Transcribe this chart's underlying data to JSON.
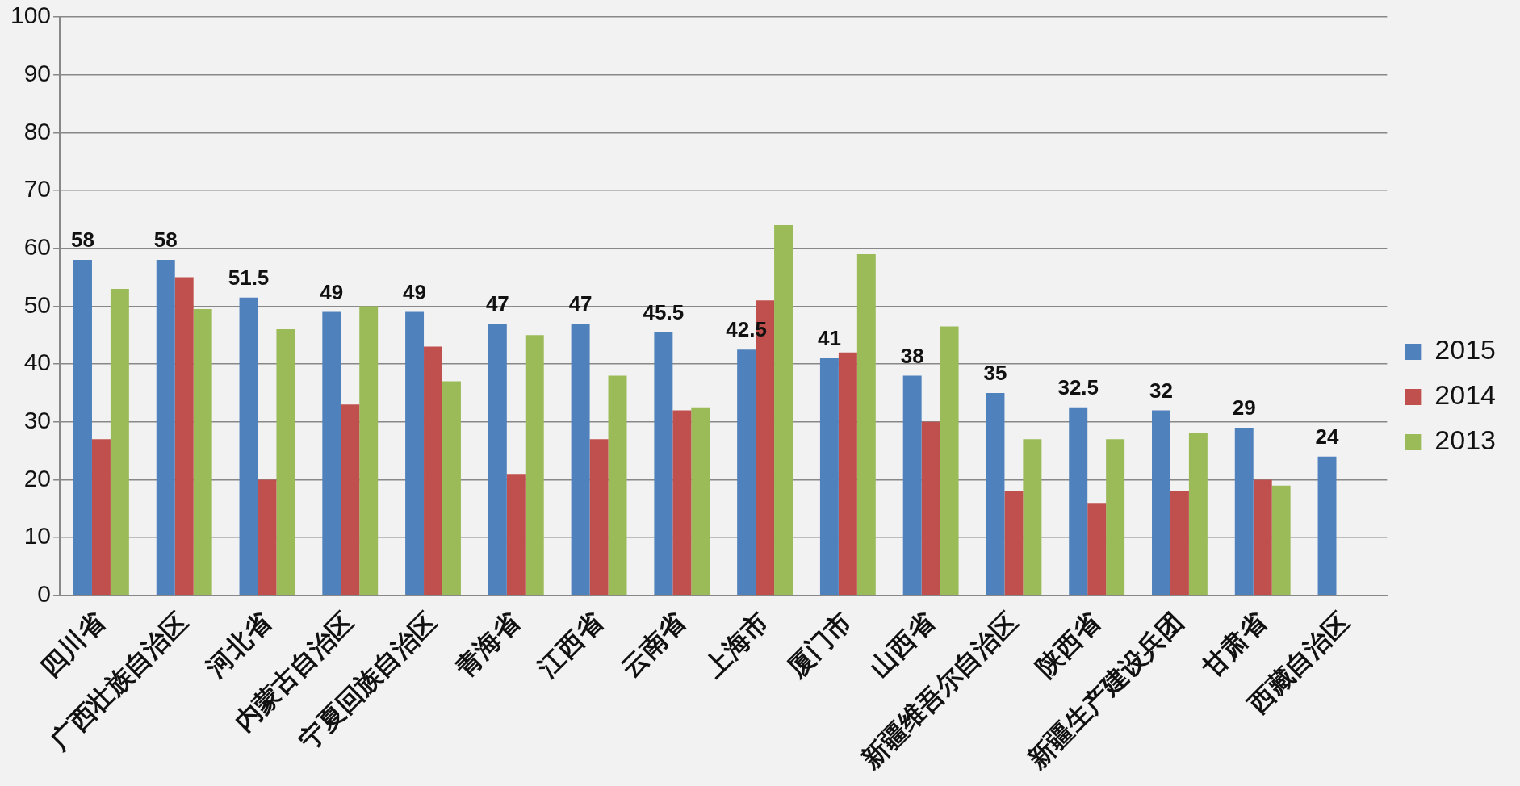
{
  "chart_data": {
    "type": "bar",
    "categories": [
      "四川省",
      "广西壮族自治区",
      "河北省",
      "内蒙古自治区",
      "宁夏回族自治区",
      "青海省",
      "江西省",
      "云南省",
      "上海市",
      "厦门市",
      "山西省",
      "新疆维吾尔自治区",
      "陕西省",
      "新疆生产建设兵团",
      "甘肃省",
      "西藏自治区"
    ],
    "series": [
      {
        "name": "2015",
        "color": "#4f81bd",
        "values": [
          58,
          58,
          51.5,
          49,
          49,
          47,
          47,
          45.5,
          42.5,
          41,
          38,
          35,
          32.5,
          32,
          29,
          24
        ],
        "value_labels": [
          "58",
          "58",
          "51.5",
          "49",
          "49",
          "47",
          "47",
          "45.5",
          "42.5",
          "41",
          "38",
          "35",
          "32.5",
          "32",
          "29",
          "24"
        ]
      },
      {
        "name": "2014",
        "color": "#c0504d",
        "values": [
          27,
          55,
          20,
          33,
          43,
          21,
          27,
          32,
          51,
          42,
          30,
          18,
          16,
          18,
          20,
          null
        ]
      },
      {
        "name": "2013",
        "color": "#9bbb59",
        "values": [
          53,
          49.5,
          46,
          50,
          37,
          45,
          38,
          32.5,
          64,
          59,
          46.5,
          27,
          27,
          28,
          19,
          null
        ]
      }
    ],
    "ylim": [
      0,
      100
    ],
    "yticks": [
      0,
      10,
      20,
      30,
      40,
      50,
      60,
      70,
      80,
      90,
      100
    ],
    "grid": "y",
    "legend": "right"
  }
}
